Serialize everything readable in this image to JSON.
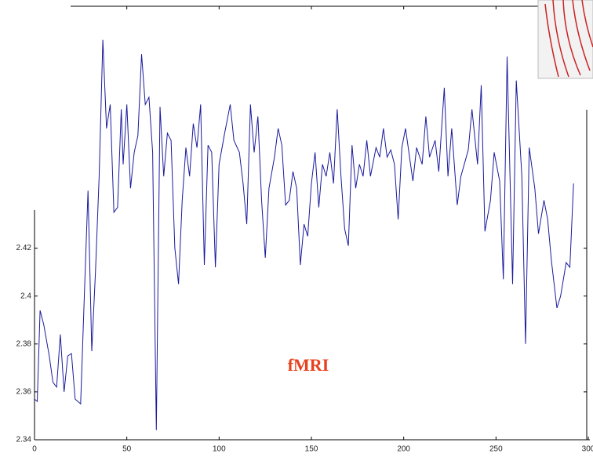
{
  "chart_data": {
    "type": "line",
    "annotation": "fMRI",
    "x": [
      0,
      1.5,
      3,
      5,
      8,
      10,
      12,
      14,
      16,
      18,
      20,
      22,
      25,
      27,
      29,
      31,
      33,
      35,
      37,
      39,
      41,
      43,
      45,
      47,
      48,
      50,
      52,
      54,
      56,
      58,
      60,
      62,
      64,
      66,
      68,
      70,
      72,
      74,
      76,
      78,
      80,
      82,
      84,
      86,
      88,
      90,
      92,
      94,
      96,
      98,
      100,
      103,
      106,
      108,
      111,
      113,
      115,
      117,
      119,
      121,
      123,
      125,
      127,
      130,
      132,
      134,
      136,
      138,
      140,
      142,
      144,
      146,
      148,
      150,
      152,
      154,
      156,
      158,
      160,
      162,
      164,
      166,
      168,
      170,
      172,
      174,
      176,
      178,
      180,
      182,
      185,
      187,
      189,
      191,
      193,
      195,
      197,
      199,
      201,
      205,
      207,
      210,
      212,
      214,
      217,
      219,
      222,
      224,
      226,
      229,
      231,
      235,
      237,
      240,
      242,
      244,
      247,
      249,
      252,
      254,
      256,
      259,
      261,
      264,
      266,
      268,
      271,
      273,
      276,
      278,
      280,
      283,
      285,
      288,
      290,
      292
    ],
    "series": [
      {
        "color": "#1a1a9c",
        "values": [
          2.357,
          2.356,
          2.394,
          2.388,
          2.375,
          2.364,
          2.362,
          2.384,
          2.36,
          2.375,
          2.376,
          2.357,
          2.355,
          2.4,
          2.444,
          2.377,
          2.41,
          2.45,
          2.507,
          2.47,
          2.48,
          2.435,
          2.437,
          2.478,
          2.455,
          2.48,
          2.445,
          2.46,
          2.467,
          2.501,
          2.48,
          2.483,
          2.46,
          2.344,
          2.479,
          2.45,
          2.468,
          2.465,
          2.42,
          2.405,
          2.44,
          2.462,
          2.45,
          2.472,
          2.462,
          2.48,
          2.413,
          2.463,
          2.46,
          2.412,
          2.455,
          2.468,
          2.48,
          2.465,
          2.46,
          2.447,
          2.43,
          2.48,
          2.46,
          2.475,
          2.44,
          2.416,
          2.445,
          2.458,
          2.47,
          2.463,
          2.438,
          2.44,
          2.452,
          2.445,
          2.413,
          2.43,
          2.425,
          2.447,
          2.46,
          2.437,
          2.455,
          2.45,
          2.46,
          2.447,
          2.478,
          2.45,
          2.428,
          2.421,
          2.463,
          2.445,
          2.455,
          2.45,
          2.465,
          2.45,
          2.462,
          2.458,
          2.47,
          2.458,
          2.461,
          2.455,
          2.432,
          2.462,
          2.47,
          2.448,
          2.462,
          2.455,
          2.475,
          2.458,
          2.465,
          2.452,
          2.487,
          2.45,
          2.47,
          2.438,
          2.45,
          2.461,
          2.478,
          2.455,
          2.488,
          2.427,
          2.44,
          2.46,
          2.448,
          2.407,
          2.5,
          2.405,
          2.49,
          2.45,
          2.38,
          2.462,
          2.445,
          2.426,
          2.44,
          2.432,
          2.415,
          2.395,
          2.4,
          2.414,
          2.412,
          2.447
        ]
      }
    ],
    "xlim": [
      0,
      300
    ],
    "ylim": [
      2.34,
      2.521
    ],
    "xticks": [
      0,
      50,
      100,
      150,
      200,
      250,
      300
    ],
    "yticks": [
      2.34,
      2.36,
      2.38,
      2.4,
      2.42
    ]
  }
}
